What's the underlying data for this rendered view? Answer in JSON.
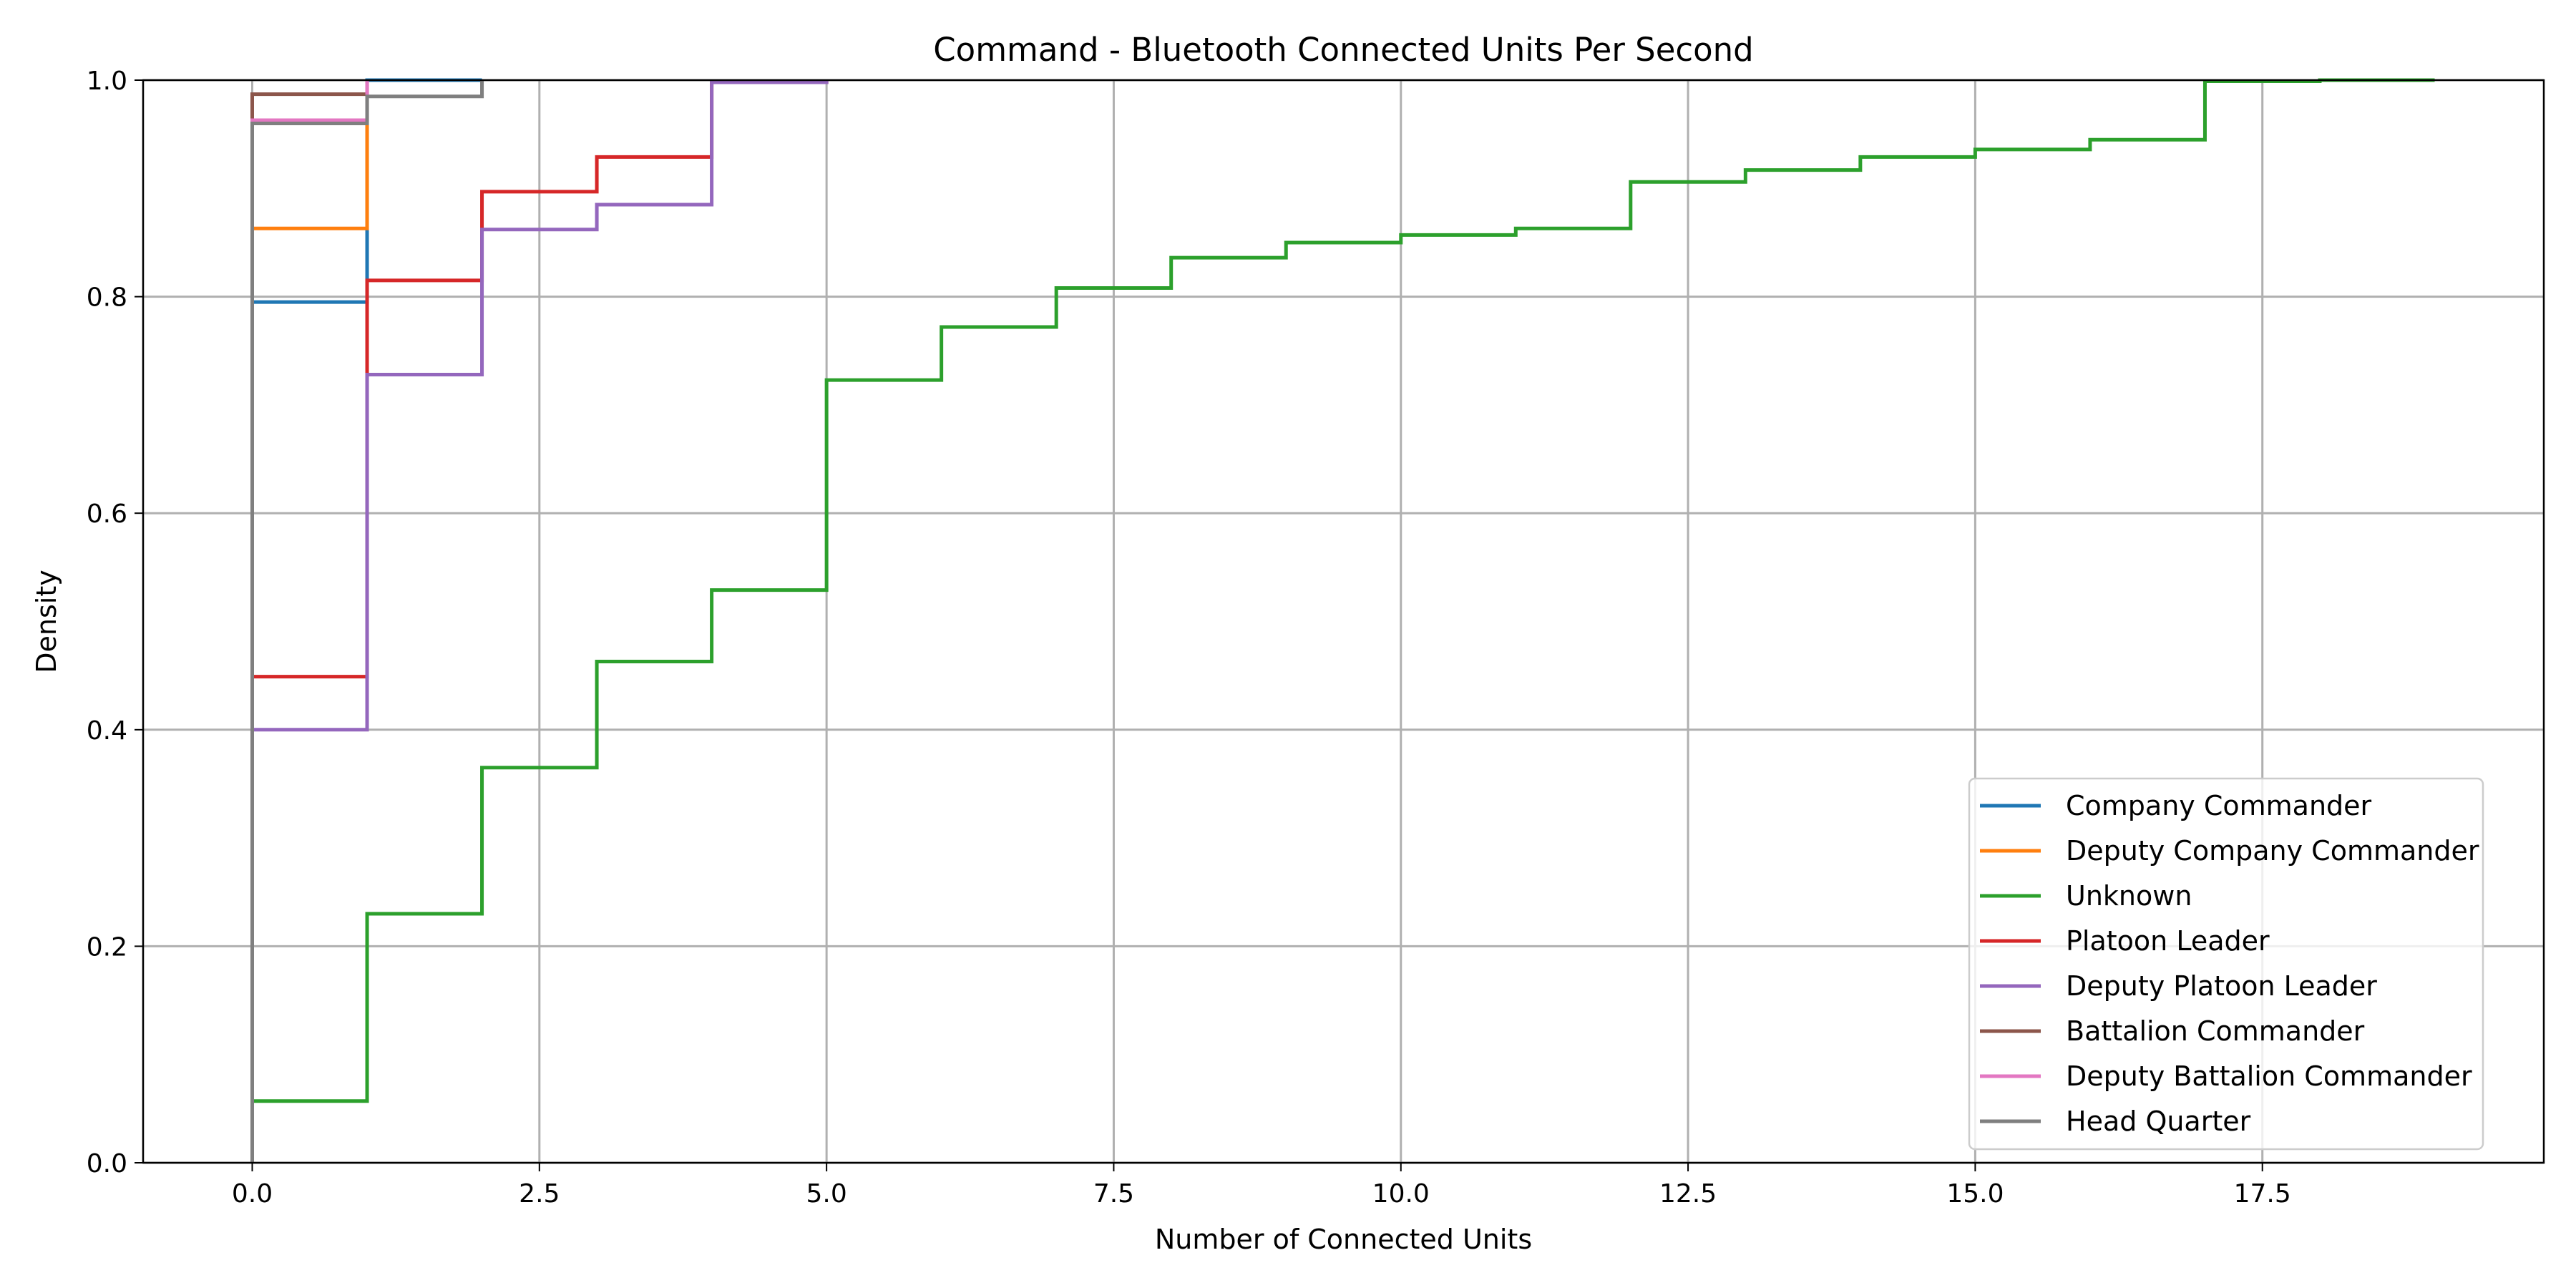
{
  "chart_data": {
    "type": "line",
    "step": "post",
    "title": "Command - Bluetooth Connected Units Per Second",
    "xlabel": "Number of Connected Units",
    "ylabel": "Density",
    "xlim": [
      -0.95,
      19.95
    ],
    "ylim": [
      0,
      1.0
    ],
    "xticks": [
      0,
      2.5,
      5,
      7.5,
      10,
      12.5,
      15,
      17.5
    ],
    "xtick_labels": [
      "0.0",
      "2.5",
      "5.0",
      "7.5",
      "10.0",
      "12.5",
      "15.0",
      "17.5"
    ],
    "yticks": [
      0,
      0.2,
      0.4,
      0.6,
      0.8,
      1.0
    ],
    "ytick_labels": [
      "0.0",
      "0.2",
      "0.4",
      "0.6",
      "0.8",
      "1.0"
    ],
    "grid": true,
    "legend": "lower-right",
    "series": [
      {
        "name": "Company Commander",
        "color": "#1f77b4",
        "x": [
          0,
          1,
          2
        ],
        "y": [
          0.795,
          1.0,
          1.0
        ]
      },
      {
        "name": "Deputy Company Commander",
        "color": "#ff7f0e",
        "x": [
          0,
          1
        ],
        "y": [
          0.863,
          1.0
        ]
      },
      {
        "name": "Unknown",
        "color": "#2ca02c",
        "x": [
          0,
          1,
          2,
          3,
          4,
          5,
          6,
          7,
          8,
          9,
          10,
          11,
          12,
          13,
          14,
          15,
          16,
          17,
          18,
          19
        ],
        "y": [
          0.057,
          0.23,
          0.365,
          0.463,
          0.529,
          0.723,
          0.772,
          0.808,
          0.836,
          0.85,
          0.857,
          0.863,
          0.906,
          0.917,
          0.929,
          0.936,
          0.945,
          0.999,
          1.0,
          1.0
        ]
      },
      {
        "name": "Platoon Leader",
        "color": "#d62728",
        "x": [
          0,
          1,
          2,
          3,
          4,
          5
        ],
        "y": [
          0.449,
          0.815,
          0.897,
          0.929,
          0.998,
          1.0
        ]
      },
      {
        "name": "Deputy Platoon Leader",
        "color": "#9467bd",
        "x": [
          0,
          1,
          2,
          3,
          4,
          5
        ],
        "y": [
          0.4,
          0.728,
          0.862,
          0.885,
          0.998,
          1.0
        ]
      },
      {
        "name": "Battalion Commander",
        "color": "#8c564b",
        "x": [
          0,
          1
        ],
        "y": [
          0.987,
          1.0
        ]
      },
      {
        "name": "Deputy Battalion Commander",
        "color": "#e377c2",
        "x": [
          0,
          1
        ],
        "y": [
          0.963,
          1.0
        ]
      },
      {
        "name": "Head Quarter",
        "color": "#7f7f7f",
        "x": [
          0,
          1,
          2
        ],
        "y": [
          0.96,
          0.985,
          1.0
        ]
      }
    ]
  }
}
